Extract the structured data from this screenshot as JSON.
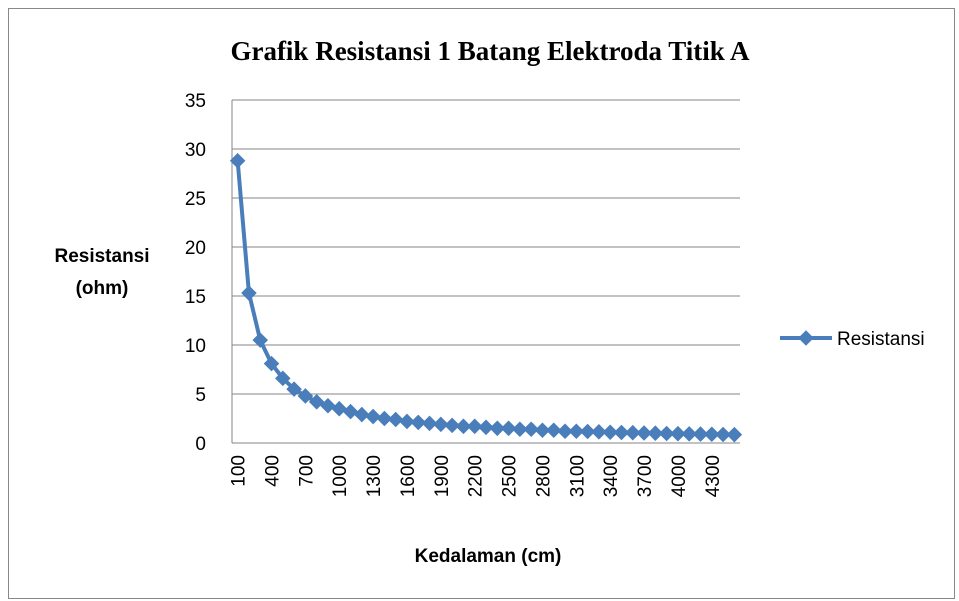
{
  "chart_data": {
    "type": "line",
    "title": "Grafik Resistansi  1 Batang Elektroda Titik A",
    "x_label": "Kedalaman (cm)",
    "y_label": "Resistansi (ohm)",
    "categories": [
      "100",
      null,
      null,
      "400",
      null,
      null,
      "700",
      null,
      null,
      "1000",
      null,
      null,
      "1300",
      null,
      null,
      "1600",
      null,
      null,
      "1900",
      null,
      null,
      "2200",
      null,
      null,
      "2500",
      null,
      null,
      "2800",
      null,
      null,
      "3100",
      null,
      null,
      "3400",
      null,
      null,
      "3700",
      null,
      null,
      "4000",
      null,
      null,
      "4300",
      null,
      null
    ],
    "series": [
      {
        "name": "Resistansi",
        "color": "#4a7ebb",
        "values": [
          28.8,
          15.3,
          10.5,
          8.1,
          6.6,
          5.5,
          4.8,
          4.2,
          3.8,
          3.5,
          3.2,
          2.9,
          2.7,
          2.5,
          2.4,
          2.2,
          2.1,
          2.0,
          1.9,
          1.8,
          1.7,
          1.7,
          1.6,
          1.5,
          1.5,
          1.4,
          1.4,
          1.3,
          1.3,
          1.2,
          1.2,
          1.17,
          1.14,
          1.1,
          1.07,
          1.05,
          1.02,
          1.0,
          0.97,
          0.95,
          0.93,
          0.91,
          0.89,
          0.87,
          0.85
        ]
      }
    ],
    "ylim": [
      0,
      35
    ],
    "yticks": [
      0,
      5,
      10,
      15,
      20,
      25,
      30,
      35
    ],
    "grid": true,
    "legend": "right"
  }
}
